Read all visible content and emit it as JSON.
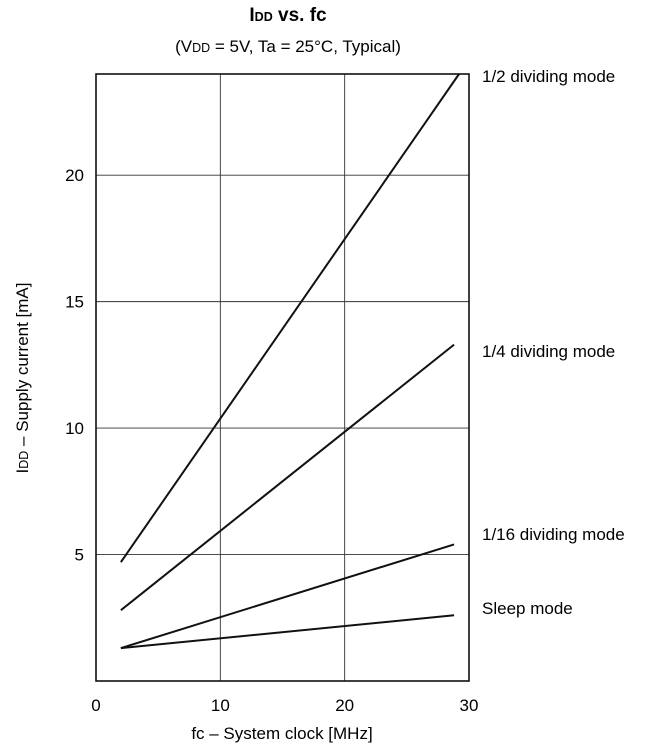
{
  "chart_data": {
    "type": "line",
    "title": {
      "main": "I",
      "sub": "DD",
      "rest": " vs. fc"
    },
    "subtitle": {
      "pre": "(V",
      "sub": "DD",
      "post": " = 5V, Ta = 25°C, Typical)"
    },
    "xlabel": "fc – System clock [MHz]",
    "ylabel": {
      "main": "I",
      "sub": "DD",
      "rest": " – Supply current [mA]"
    },
    "xlim": [
      0,
      30
    ],
    "ylim": [
      0,
      24
    ],
    "xticks": [
      0,
      10,
      20,
      30
    ],
    "yticks": [
      5,
      10,
      15,
      20
    ],
    "grid": true,
    "series": [
      {
        "name": "1/2 dividing mode",
        "x": [
          2,
          29.2
        ],
        "y": [
          4.7,
          24
        ]
      },
      {
        "name": "1/4 dividing mode",
        "x": [
          2,
          28.8
        ],
        "y": [
          2.8,
          13.3
        ]
      },
      {
        "name": "1/16 dividing mode",
        "x": [
          2,
          28.8
        ],
        "y": [
          1.3,
          5.4
        ]
      },
      {
        "name": "Sleep mode",
        "x": [
          2,
          28.8
        ],
        "y": [
          1.3,
          2.6
        ]
      }
    ]
  }
}
